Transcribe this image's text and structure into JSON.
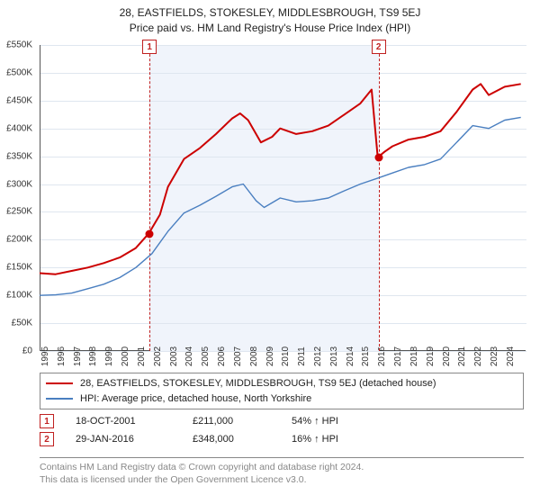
{
  "title": "28, EASTFIELDS, STOKESLEY, MIDDLESBROUGH, TS9 5EJ",
  "subtitle": "Price paid vs. HM Land Registry's House Price Index (HPI)",
  "chart": {
    "type": "line",
    "background_color": "#ffffff",
    "grid_color": "#dfe6ef",
    "axis_color": "#555555",
    "font_family": "Arial",
    "label_fontsize": 10,
    "x": {
      "min": 1995,
      "max": 2025.3,
      "ticks": [
        1995,
        1996,
        1997,
        1998,
        1999,
        2000,
        2001,
        2002,
        2003,
        2004,
        2005,
        2006,
        2007,
        2008,
        2009,
        2010,
        2011,
        2012,
        2013,
        2014,
        2015,
        2016,
        2017,
        2018,
        2019,
        2020,
        2021,
        2022,
        2023,
        2024
      ]
    },
    "y": {
      "min": 0,
      "max": 550000,
      "tick_step": 50000,
      "prefix": "£",
      "format_k": true
    },
    "band": {
      "start": 2001.8,
      "end": 2016.08,
      "color": "#f0f4fb"
    },
    "markers": [
      {
        "num": "1",
        "x": 2001.8,
        "y": 211000
      },
      {
        "num": "2",
        "x": 2016.08,
        "y": 348000
      }
    ],
    "series": [
      {
        "name": "28, EASTFIELDS, STOKESLEY, MIDDLESBROUGH, TS9 5EJ (detached house)",
        "color": "#cc0000",
        "line_width": 2,
        "points": [
          [
            1995,
            140000
          ],
          [
            1996,
            138000
          ],
          [
            1997,
            144000
          ],
          [
            1998,
            150000
          ],
          [
            1999,
            158000
          ],
          [
            2000,
            168000
          ],
          [
            2001,
            185000
          ],
          [
            2001.8,
            211000
          ],
          [
            2002.5,
            245000
          ],
          [
            2003,
            295000
          ],
          [
            2004,
            345000
          ],
          [
            2005,
            365000
          ],
          [
            2006,
            390000
          ],
          [
            2007,
            418000
          ],
          [
            2007.5,
            427000
          ],
          [
            2008,
            415000
          ],
          [
            2008.8,
            375000
          ],
          [
            2009.5,
            385000
          ],
          [
            2010,
            400000
          ],
          [
            2011,
            390000
          ],
          [
            2012,
            395000
          ],
          [
            2013,
            405000
          ],
          [
            2014,
            425000
          ],
          [
            2015,
            445000
          ],
          [
            2015.7,
            470000
          ],
          [
            2016.08,
            348000
          ],
          [
            2016.5,
            358000
          ],
          [
            2017,
            368000
          ],
          [
            2018,
            380000
          ],
          [
            2019,
            385000
          ],
          [
            2020,
            395000
          ],
          [
            2021,
            430000
          ],
          [
            2022,
            470000
          ],
          [
            2022.5,
            480000
          ],
          [
            2023,
            460000
          ],
          [
            2024,
            475000
          ],
          [
            2025,
            480000
          ]
        ]
      },
      {
        "name": "HPI: Average price, detached house, North Yorkshire",
        "color": "#4a7fc0",
        "line_width": 1.4,
        "points": [
          [
            1995,
            100000
          ],
          [
            1996,
            101000
          ],
          [
            1997,
            104000
          ],
          [
            1998,
            112000
          ],
          [
            1999,
            120000
          ],
          [
            2000,
            132000
          ],
          [
            2001,
            150000
          ],
          [
            2002,
            175000
          ],
          [
            2003,
            215000
          ],
          [
            2004,
            248000
          ],
          [
            2005,
            262000
          ],
          [
            2006,
            278000
          ],
          [
            2007,
            295000
          ],
          [
            2007.7,
            300000
          ],
          [
            2008.5,
            270000
          ],
          [
            2009,
            258000
          ],
          [
            2010,
            275000
          ],
          [
            2011,
            268000
          ],
          [
            2012,
            270000
          ],
          [
            2013,
            275000
          ],
          [
            2014,
            288000
          ],
          [
            2015,
            300000
          ],
          [
            2016,
            310000
          ],
          [
            2017,
            320000
          ],
          [
            2018,
            330000
          ],
          [
            2019,
            335000
          ],
          [
            2020,
            345000
          ],
          [
            2021,
            375000
          ],
          [
            2022,
            405000
          ],
          [
            2023,
            400000
          ],
          [
            2024,
            415000
          ],
          [
            2025,
            420000
          ]
        ]
      }
    ]
  },
  "legend": {
    "border_color": "#888888",
    "items": [
      {
        "color": "#cc0000",
        "label": "28, EASTFIELDS, STOKESLEY, MIDDLESBROUGH, TS9 5EJ (detached house)"
      },
      {
        "color": "#4a7fc0",
        "label": "HPI: Average price, detached house, North Yorkshire"
      }
    ]
  },
  "sales": [
    {
      "num": "1",
      "date": "18-OCT-2001",
      "price": "£211,000",
      "delta": "54% ↑ HPI"
    },
    {
      "num": "2",
      "date": "29-JAN-2016",
      "price": "£348,000",
      "delta": "16% ↑ HPI"
    }
  ],
  "attribution": {
    "line1": "Contains HM Land Registry data © Crown copyright and database right 2024.",
    "line2": "This data is licensed under the Open Government Licence v3.0."
  }
}
